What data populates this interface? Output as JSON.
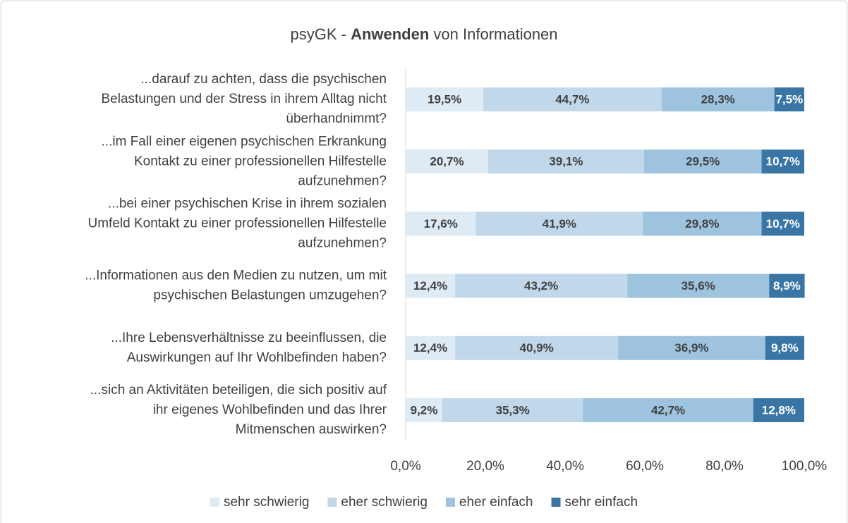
{
  "chart_data": {
    "type": "stacked_barh",
    "title": [
      "psyGK -",
      "Anwenden",
      "von Informationen"
    ],
    "categories": [
      [
        "...darauf zu achten, dass die psychischen",
        "Belastungen und der Stress in ihrem Alltag nicht",
        "überhandnimmt?"
      ],
      [
        "...im Fall einer eigenen psychischen Erkrankung",
        "Kontakt zu einer professionellen Hilfestelle",
        "aufzunehmen?"
      ],
      [
        "...bei einer psychischen Krise in ihrem sozialen",
        "Umfeld Kontakt zu einer professionellen Hilfestelle",
        "aufzunehmen?"
      ],
      [
        "...Informationen aus den Medien zu nutzen, um mit",
        "psychischen Belastungen umzugehen?"
      ],
      [
        "...Ihre Lebensverhältnisse zu beeinflussen, die",
        "Auswirkungen auf Ihr Wohlbefinden haben?"
      ],
      [
        "...sich an Aktivitäten beteiligen, die sich positiv auf",
        "ihr eigenes Wohlbefinden und das Ihrer",
        "Mitmenschen auswirken?"
      ]
    ],
    "series": [
      {
        "name": "sehr schwierig",
        "color": "#deeaf4",
        "values": [
          19.5,
          20.7,
          17.6,
          12.4,
          12.4,
          9.2
        ],
        "value_labels": [
          "19,5%",
          "20,7%",
          "17,6%",
          "12,4%",
          "12,4%",
          "9,2%"
        ]
      },
      {
        "name": "eher schwierig",
        "color": "#c1d7ea",
        "values": [
          44.7,
          39.1,
          41.9,
          43.2,
          40.9,
          35.3
        ],
        "value_labels": [
          "44,7%",
          "39,1%",
          "41,9%",
          "43,2%",
          "40,9%",
          "35,3%"
        ]
      },
      {
        "name": "eher einfach",
        "color": "#9dc3df",
        "values": [
          28.3,
          29.5,
          29.8,
          35.6,
          36.9,
          42.7
        ],
        "value_labels": [
          "28,3%",
          "29,5%",
          "29,8%",
          "35,6%",
          "36,9%",
          "42,7%"
        ]
      },
      {
        "name": "sehr einfach",
        "color": "#3a76a5",
        "values": [
          7.5,
          10.7,
          10.7,
          8.9,
          9.8,
          12.8
        ],
        "value_labels": [
          "7,5%",
          "10,7%",
          "10,7%",
          "8,9%",
          "9,8%",
          "12,8%"
        ]
      }
    ],
    "xlim": [
      0,
      100
    ],
    "xticks": [
      {
        "value": 0,
        "label": "0,0%"
      },
      {
        "value": 20,
        "label": "20,0%"
      },
      {
        "value": 40,
        "label": "40,0%"
      },
      {
        "value": 60,
        "label": "60,0%"
      },
      {
        "value": 80,
        "label": "80,0%"
      },
      {
        "value": 100,
        "label": "100,0%"
      }
    ],
    "legend": "bottom"
  }
}
